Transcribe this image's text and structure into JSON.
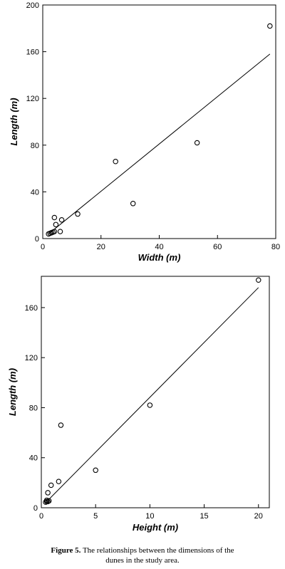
{
  "chart_data": [
    {
      "type": "scatter",
      "xlabel": "Width (m)",
      "ylabel": "Length (m)",
      "xlim": [
        0,
        80
      ],
      "ylim": [
        0,
        200
      ],
      "xticks": [
        0,
        20,
        40,
        60,
        80
      ],
      "yticks": [
        0,
        40,
        80,
        120,
        160,
        200
      ],
      "grid": false,
      "marker": "open-circle",
      "series": [
        {
          "points": [
            [
              78,
              182
            ],
            [
              53,
              82
            ],
            [
              25,
              66
            ],
            [
              31,
              30
            ],
            [
              12,
              21
            ],
            [
              4,
              18
            ],
            [
              6.5,
              16
            ],
            [
              4.5,
              12
            ],
            [
              6,
              6
            ],
            [
              4,
              6
            ],
            [
              3.5,
              5.5
            ],
            [
              3,
              5
            ],
            [
              2.5,
              4.5
            ],
            [
              2,
              4
            ]
          ]
        }
      ],
      "trendline": {
        "x": [
          2,
          78
        ],
        "y": [
          4,
          158
        ]
      }
    },
    {
      "type": "scatter",
      "xlabel": "Height (m)",
      "ylabel": "Length (m)",
      "xlim": [
        0,
        21
      ],
      "ylim": [
        0,
        185
      ],
      "xticks": [
        0,
        5,
        10,
        15,
        20
      ],
      "yticks": [
        0,
        40,
        80,
        120,
        160
      ],
      "grid": false,
      "marker": "open-circle",
      "series": [
        {
          "points": [
            [
              20,
              182
            ],
            [
              10,
              82
            ],
            [
              1.8,
              66
            ],
            [
              5,
              30
            ],
            [
              1.6,
              21
            ],
            [
              0.9,
              18
            ],
            [
              0.6,
              12
            ],
            [
              0.5,
              6
            ],
            [
              0.6,
              5
            ],
            [
              0.7,
              5.5
            ],
            [
              0.5,
              5
            ],
            [
              0.4,
              4.5
            ]
          ]
        }
      ],
      "trendline": {
        "x": [
          0.5,
          20
        ],
        "y": [
          5,
          176
        ]
      }
    }
  ],
  "caption": {
    "label": "Figure 5.",
    "text_line1": " The relationships between the dimensions of the",
    "text_line2": "dunes in the study area."
  }
}
